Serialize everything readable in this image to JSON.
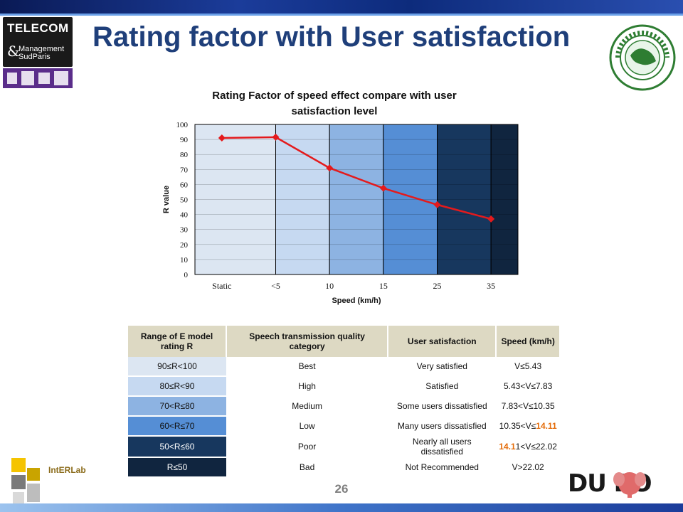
{
  "slide": {
    "title": "Rating factor with User satisfaction",
    "page_number": "26",
    "logos": {
      "telecom_line1": "TELECOM",
      "telecom_amp": "&",
      "telecom_line2": "Management",
      "telecom_line3": "SudParis",
      "interlab": "IntERLab",
      "dumbo": "DU BO"
    }
  },
  "chart_data": {
    "type": "line",
    "title_line1": "Rating Factor of speed effect compare with user",
    "title_line2": "satisfaction level",
    "xlabel": "Speed (km/h)",
    "ylabel": "R value",
    "categories": [
      "Static",
      "<5",
      "10",
      "15",
      "25",
      "35"
    ],
    "series": [
      {
        "values": [
          91,
          91.5,
          71,
          57.5,
          46.5,
          37
        ],
        "color": "#e41a1c"
      }
    ],
    "ylim": [
      0,
      100
    ],
    "yticks": [
      0,
      10,
      20,
      30,
      40,
      50,
      60,
      70,
      80,
      90,
      100
    ],
    "background_bands": [
      {
        "from": "Static",
        "to": "<5",
        "color": "#dce6f2"
      },
      {
        "from": "<5",
        "to": "10",
        "color": "#c6d9f1"
      },
      {
        "from": "10",
        "to": "15",
        "color": "#8db3e2"
      },
      {
        "from": "15",
        "to": "25",
        "color": "#558ed5"
      },
      {
        "from": "25",
        "to": "35",
        "color": "#17375e"
      },
      {
        "from": "35",
        "to": "end",
        "color": "#10253f"
      }
    ],
    "grid": true
  },
  "table": {
    "headers": [
      "Range of E model rating R",
      "Speech transmission quality category",
      "User satisfaction",
      "Speed (km/h)"
    ],
    "rows": [
      {
        "range": "90≤R<100",
        "category": "Best",
        "satisfaction": "Very satisfied",
        "speed_a": "V≤5.43",
        "speed_b": "",
        "speed_c": ""
      },
      {
        "range": "80≤R<90",
        "category": "High",
        "satisfaction": "Satisfied",
        "speed_a": "5.43<V≤7.83",
        "speed_b": "",
        "speed_c": ""
      },
      {
        "range": "70<R≤80",
        "category": "Medium",
        "satisfaction": "Some users dissatisfied",
        "speed_a": "7.83<V≤10.35",
        "speed_b": "",
        "speed_c": ""
      },
      {
        "range": "60<R≤70",
        "category": "Low",
        "satisfaction": "Many users dissatisfied",
        "speed_a": "10.35<V≤",
        "speed_b": "14.11",
        "speed_c": ""
      },
      {
        "range": "50<R≤60",
        "category": "Poor",
        "satisfaction": "Nearly all users dissatisfied",
        "speed_a": "",
        "speed_b": "14.1",
        "speed_c": "1<V≤22.02"
      },
      {
        "range": "R≤50",
        "category": "Bad",
        "satisfaction": "Not Recommended",
        "speed_a": "V>22.02",
        "speed_b": "",
        "speed_c": ""
      }
    ]
  }
}
